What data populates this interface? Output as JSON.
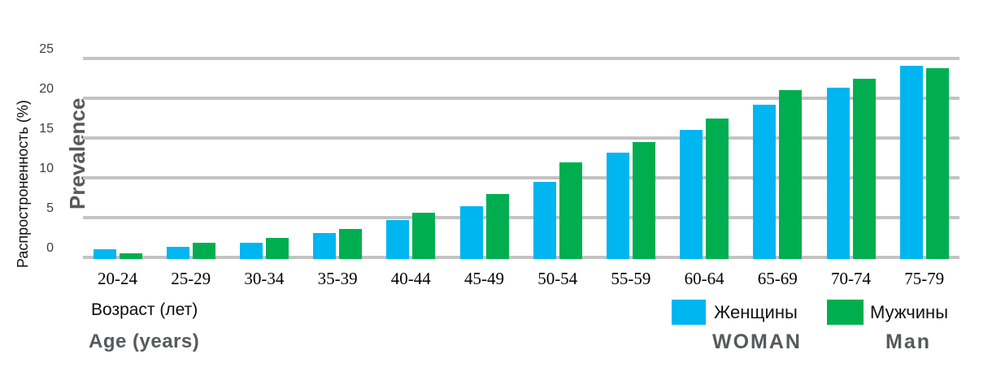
{
  "chart_data": {
    "type": "bar",
    "title": "",
    "categories": [
      "20-24",
      "25-29",
      "30-34",
      "35-39",
      "40-44",
      "45-49",
      "50-54",
      "55-59",
      "60-64",
      "65-69",
      "70-74",
      "75-79"
    ],
    "series": [
      {
        "name": "Женщины",
        "name_en": "WOMAN",
        "color": "#00b6f0",
        "values": [
          1.0,
          1.3,
          1.8,
          3.1,
          4.7,
          6.4,
          9.5,
          13.2,
          16.0,
          19.2,
          21.3,
          24.1
        ]
      },
      {
        "name": "Мужчины",
        "name_en": "Man",
        "color": "#00ae50",
        "values": [
          0.5,
          1.8,
          2.4,
          3.6,
          5.6,
          8.0,
          11.9,
          14.5,
          17.4,
          21.0,
          22.4,
          23.8
        ]
      }
    ],
    "ylabel_ru": "Распростроненность (%)",
    "ylabel_en": "Prevalence",
    "xlabel_ru": "Возраст (лет)",
    "xlabel_en": "Age (years)",
    "yticks": [
      0,
      5,
      10,
      15,
      20,
      25
    ],
    "ylim": [
      0,
      25
    ],
    "grid": true,
    "legend_position": "bottom-right"
  },
  "colors": {
    "women": "#00b6f0",
    "men": "#00ae50",
    "gridline": "#c3c3c3",
    "text_primary": "#000000",
    "text_secondary_bold": "#58595b",
    "background": "#ffffff"
  }
}
